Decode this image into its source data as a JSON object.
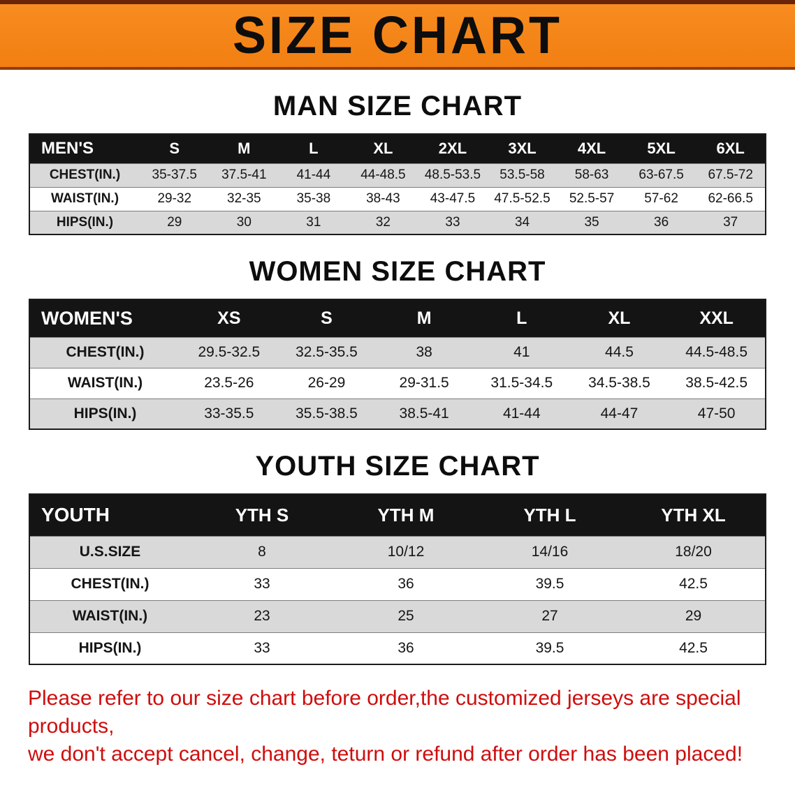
{
  "banner": {
    "title": "SIZE CHART"
  },
  "sections": [
    {
      "id": "men",
      "heading": "MAN SIZE CHART",
      "table": {
        "header": [
          "MEN'S",
          "S",
          "M",
          "L",
          "XL",
          "2XL",
          "3XL",
          "4XL",
          "5XL",
          "6XL"
        ],
        "rows": [
          [
            "CHEST(IN.)",
            "35-37.5",
            "37.5-41",
            "41-44",
            "44-48.5",
            "48.5-53.5",
            "53.5-58",
            "58-63",
            "63-67.5",
            "67.5-72"
          ],
          [
            "WAIST(IN.)",
            "29-32",
            "32-35",
            "35-38",
            "38-43",
            "43-47.5",
            "47.5-52.5",
            "52.5-57",
            "57-62",
            "62-66.5"
          ],
          [
            "HIPS(IN.)",
            "29",
            "30",
            "31",
            "32",
            "33",
            "34",
            "35",
            "36",
            "37"
          ]
        ]
      }
    },
    {
      "id": "women",
      "heading": "WOMEN SIZE CHART",
      "table": {
        "header": [
          "WOMEN'S",
          "XS",
          "S",
          "M",
          "L",
          "XL",
          "XXL"
        ],
        "rows": [
          [
            "CHEST(IN.)",
            "29.5-32.5",
            "32.5-35.5",
            "38",
            "41",
            "44.5",
            "44.5-48.5"
          ],
          [
            "WAIST(IN.)",
            "23.5-26",
            "26-29",
            "29-31.5",
            "31.5-34.5",
            "34.5-38.5",
            "38.5-42.5"
          ],
          [
            "HIPS(IN.)",
            "33-35.5",
            "35.5-38.5",
            "38.5-41",
            "41-44",
            "44-47",
            "47-50"
          ]
        ]
      }
    },
    {
      "id": "youth",
      "heading": "YOUTH SIZE CHART",
      "table": {
        "header": [
          "YOUTH",
          "YTH S",
          "YTH M",
          "YTH L",
          "YTH XL"
        ],
        "rows": [
          [
            "U.S.SIZE",
            "8",
            "10/12",
            "14/16",
            "18/20"
          ],
          [
            "CHEST(IN.)",
            "33",
            "36",
            "39.5",
            "42.5"
          ],
          [
            "WAIST(IN.)",
            "23",
            "25",
            "27",
            "29"
          ],
          [
            "HIPS(IN.)",
            "33",
            "36",
            "39.5",
            "42.5"
          ]
        ]
      }
    }
  ],
  "disclaimer": {
    "line1": "Please refer to our size chart before order,the customized jerseys are special products,",
    "line2": "we don't accept cancel, change, teturn or refund after order has been placed!"
  },
  "colors": {
    "banner_orange": "#f48415",
    "banner_border_dark": "#6a2408",
    "table_header_black": "#141414",
    "row_gray": "#d9d9d9",
    "disclaimer_red": "#cf0d0d"
  }
}
